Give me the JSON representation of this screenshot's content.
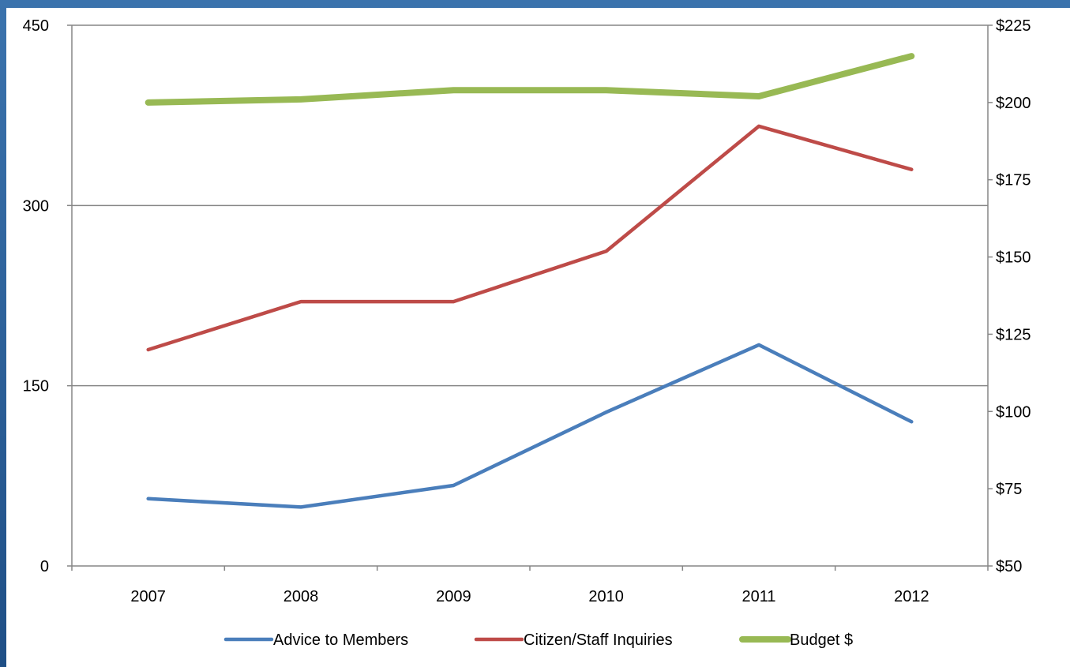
{
  "chart_data": {
    "type": "line",
    "title": "",
    "xlabel": "",
    "ylabel": "",
    "categories": [
      "2007",
      "2008",
      "2009",
      "2010",
      "2011",
      "2012"
    ],
    "y_left": {
      "ylim": [
        0,
        450
      ],
      "ticks": [
        0,
        150,
        300,
        450
      ],
      "tick_labels": [
        "0",
        "150",
        "300",
        "450"
      ]
    },
    "y_right": {
      "ylim": [
        50,
        225
      ],
      "ticks": [
        50,
        75,
        100,
        125,
        150,
        175,
        200,
        225
      ],
      "tick_labels": [
        "$50",
        "$75",
        "$100",
        "$125",
        "$150",
        "$175",
        "$200",
        "$225"
      ]
    },
    "grid": "horizontal major lines at left-axis ticks",
    "legend_position": "bottom",
    "series": [
      {
        "name": "Advice to Members",
        "axis": "left",
        "color": "#4a7ebb",
        "values": [
          56,
          49,
          67,
          128,
          184,
          120
        ]
      },
      {
        "name": "Citizen/Staff Inquiries",
        "axis": "left",
        "color": "#be4b48",
        "values": [
          180,
          220,
          220,
          262,
          366,
          330
        ]
      },
      {
        "name": "Budget $",
        "axis": "right",
        "color": "#98b954",
        "values": [
          200,
          201,
          204,
          204,
          202,
          215
        ]
      }
    ]
  }
}
